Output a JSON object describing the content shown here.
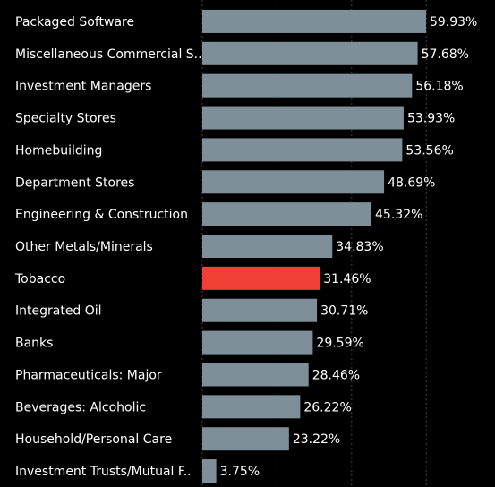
{
  "chart_data": {
    "type": "barh",
    "categories": [
      "Packaged Software",
      "Miscellaneous Commercial S..",
      "Investment Managers",
      "Specialty Stores",
      "Homebuilding",
      "Department Stores",
      "Engineering & Construction",
      "Other Metals/Minerals",
      "Tobacco",
      "Integrated Oil",
      "Banks",
      "Pharmaceuticals: Major",
      "Beverages: Alcoholic",
      "Household/Personal Care",
      "Investment Trusts/Mutual F.."
    ],
    "values": [
      59.93,
      57.68,
      56.18,
      53.93,
      53.56,
      48.69,
      45.32,
      34.83,
      31.46,
      30.71,
      29.59,
      28.46,
      26.22,
      23.22,
      3.75
    ],
    "value_labels": [
      "59.93%",
      "57.68%",
      "56.18%",
      "53.93%",
      "53.56%",
      "48.69%",
      "45.32%",
      "34.83%",
      "31.46%",
      "30.71%",
      "29.59%",
      "28.46%",
      "26.22%",
      "23.22%",
      "3.75%"
    ],
    "colors": [
      "#7e8f99",
      "#7e8f99",
      "#7e8f99",
      "#7e8f99",
      "#7e8f99",
      "#7e8f99",
      "#7e8f99",
      "#7e8f99",
      "#f23f35",
      "#7e8f99",
      "#7e8f99",
      "#7e8f99",
      "#7e8f99",
      "#7e8f99",
      "#7e8f99"
    ],
    "xlim": [
      0,
      78.4
    ],
    "xticks": [
      0,
      20,
      40,
      60
    ],
    "grid": true
  }
}
